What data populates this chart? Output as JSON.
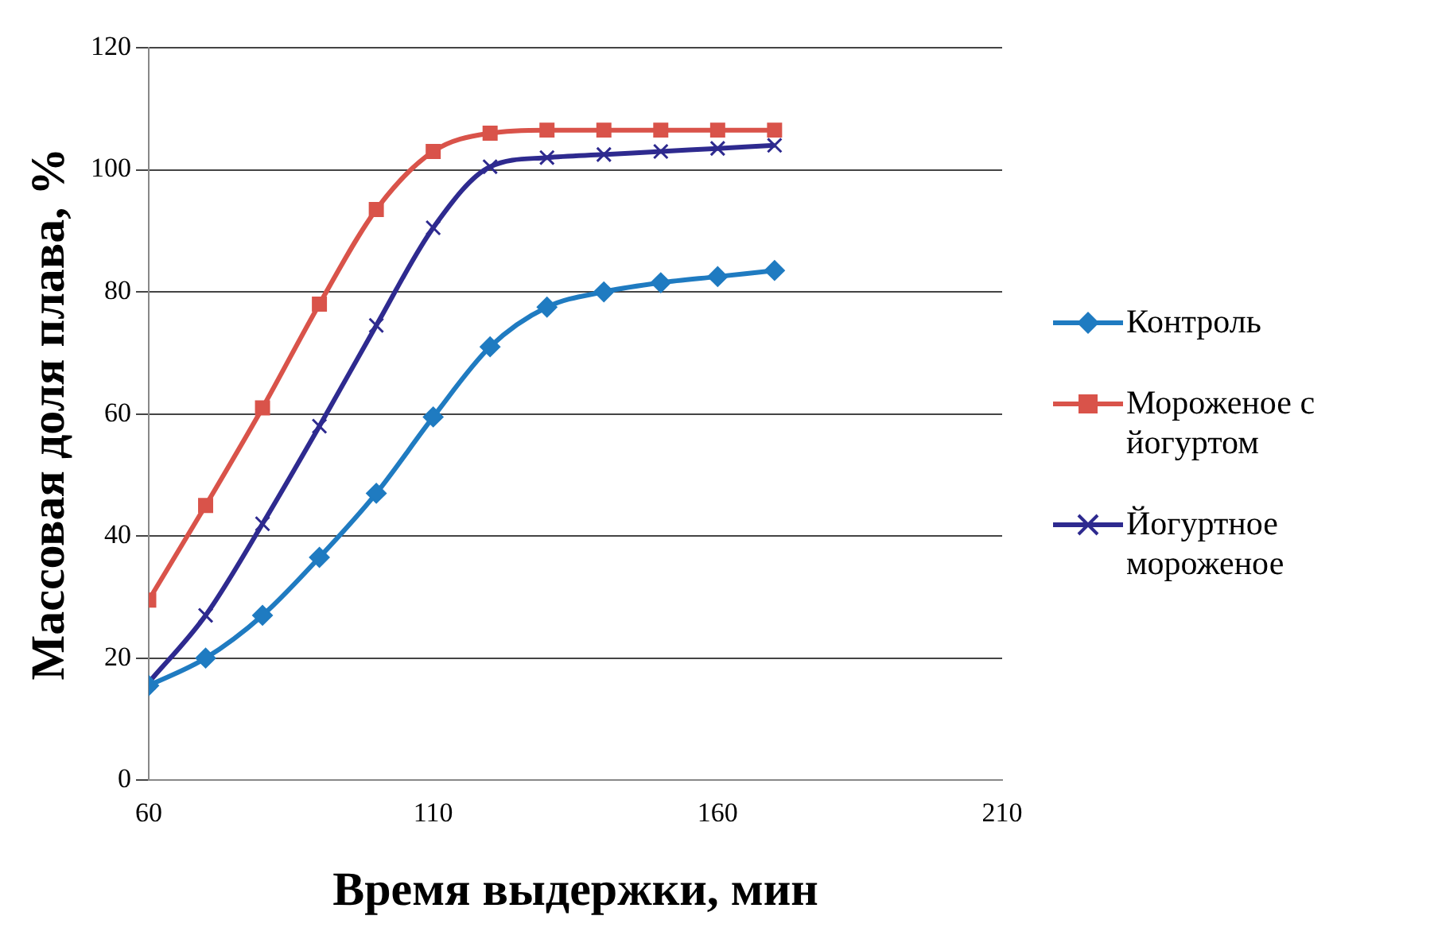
{
  "chart_data": {
    "type": "line",
    "xlabel": "Время выдержки, мин",
    "ylabel": "Массовая доля плава, %",
    "x": [
      60,
      70,
      80,
      90,
      100,
      110,
      120,
      130,
      140,
      150,
      160,
      170
    ],
    "xlim": [
      60,
      210
    ],
    "xticks": [
      60,
      110,
      160,
      210
    ],
    "ylim": [
      0,
      120
    ],
    "yticks": [
      0,
      20,
      40,
      60,
      80,
      100,
      120
    ],
    "grid": "y",
    "legend": "right",
    "series": [
      {
        "name": "Контроль",
        "color": "#1f7bc1",
        "marker": "diamond",
        "values": [
          15.5,
          20,
          27,
          36.5,
          47,
          59.5,
          71,
          77.5,
          80,
          81.5,
          82.5,
          83.5
        ]
      },
      {
        "name": "Мороженое с йогуртом",
        "color": "#d9534a",
        "marker": "square",
        "values": [
          29.5,
          45,
          61,
          78,
          93.5,
          103,
          106,
          106.5,
          106.5,
          106.5,
          106.5,
          106.5
        ]
      },
      {
        "name": "Йогуртное мороженое",
        "color": "#2e2a8f",
        "marker": "cross",
        "values": [
          16,
          27,
          42,
          58,
          74.5,
          90.5,
          100.5,
          102,
          102.5,
          103,
          103.5,
          104
        ]
      }
    ]
  }
}
